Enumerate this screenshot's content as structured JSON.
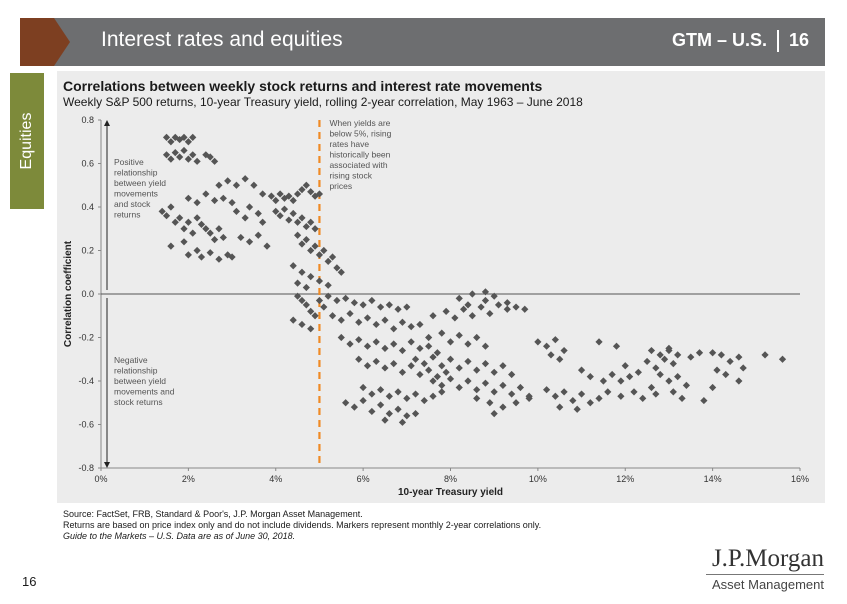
{
  "header": {
    "title": "Interest rates and equities",
    "gtm_label": "GTM – U.S.",
    "page": "16"
  },
  "side_tab": {
    "label": "Equities"
  },
  "colors": {
    "header_band": "#6d6e70",
    "header_accent": "#7d3f21",
    "side_tab": "#7d8a3a",
    "marker": "#555555",
    "threshold_line": "#f08a24",
    "panel": "#ececec"
  },
  "chart_data": {
    "type": "scatter",
    "title": "Correlations between weekly stock returns and interest rate movements",
    "subtitle": "Weekly S&P 500 returns, 10-year Treasury yield, rolling 2-year correlation, May 1963 – June 2018",
    "xlabel": "10-year Treasury yield",
    "ylabel": "Correlation coefficient",
    "xlim": [
      0,
      16
    ],
    "ylim": [
      -0.8,
      0.8
    ],
    "x_ticks": [
      0,
      2,
      4,
      6,
      8,
      10,
      12,
      14,
      16
    ],
    "x_tick_labels": [
      "0%",
      "2%",
      "4%",
      "6%",
      "8%",
      "10%",
      "12%",
      "14%",
      "16%"
    ],
    "y_ticks": [
      0.8,
      0.6,
      0.4,
      0.2,
      0.0,
      -0.2,
      -0.4,
      -0.6,
      -0.8
    ],
    "y_tick_labels": [
      "0.8",
      "0.6",
      "0.4",
      "0.2",
      "0.0",
      "-0.2",
      "-0.4",
      "-0.6",
      "-0.8"
    ],
    "threshold_x": 5,
    "annotations": {
      "positive": [
        "Positive",
        "relationship",
        "between yield",
        "movements",
        "and stock",
        "returns"
      ],
      "negative": [
        "Negative",
        "relationship",
        "between yield",
        "movements and",
        "stock returns"
      ],
      "threshold": [
        "When yields are",
        "below 5%, rising",
        "rates have",
        "historically been",
        "associated with",
        "rising stock",
        "prices"
      ]
    },
    "points": [
      [
        1.5,
        0.72
      ],
      [
        1.6,
        0.7
      ],
      [
        1.7,
        0.72
      ],
      [
        1.8,
        0.71
      ],
      [
        1.9,
        0.72
      ],
      [
        2.0,
        0.7
      ],
      [
        2.1,
        0.72
      ],
      [
        1.5,
        0.64
      ],
      [
        1.6,
        0.62
      ],
      [
        1.7,
        0.65
      ],
      [
        1.8,
        0.63
      ],
      [
        1.9,
        0.66
      ],
      [
        2.0,
        0.62
      ],
      [
        2.1,
        0.64
      ],
      [
        2.2,
        0.61
      ],
      [
        2.4,
        0.64
      ],
      [
        2.5,
        0.63
      ],
      [
        2.6,
        0.61
      ],
      [
        1.4,
        0.38
      ],
      [
        1.5,
        0.36
      ],
      [
        1.6,
        0.4
      ],
      [
        1.7,
        0.33
      ],
      [
        1.8,
        0.35
      ],
      [
        1.9,
        0.3
      ],
      [
        2.0,
        0.33
      ],
      [
        2.1,
        0.28
      ],
      [
        2.2,
        0.35
      ],
      [
        2.3,
        0.32
      ],
      [
        2.4,
        0.3
      ],
      [
        2.5,
        0.28
      ],
      [
        2.6,
        0.25
      ],
      [
        2.7,
        0.3
      ],
      [
        2.8,
        0.26
      ],
      [
        1.6,
        0.22
      ],
      [
        1.9,
        0.24
      ],
      [
        2.0,
        0.18
      ],
      [
        2.2,
        0.2
      ],
      [
        2.3,
        0.17
      ],
      [
        2.5,
        0.19
      ],
      [
        2.7,
        0.16
      ],
      [
        2.9,
        0.18
      ],
      [
        3.0,
        0.17
      ],
      [
        2.0,
        0.44
      ],
      [
        2.2,
        0.42
      ],
      [
        2.4,
        0.46
      ],
      [
        2.6,
        0.43
      ],
      [
        2.8,
        0.44
      ],
      [
        3.0,
        0.42
      ],
      [
        2.7,
        0.5
      ],
      [
        2.9,
        0.52
      ],
      [
        3.1,
        0.5
      ],
      [
        3.3,
        0.53
      ],
      [
        3.5,
        0.5
      ],
      [
        3.1,
        0.38
      ],
      [
        3.3,
        0.35
      ],
      [
        3.4,
        0.4
      ],
      [
        3.6,
        0.37
      ],
      [
        3.7,
        0.33
      ],
      [
        3.2,
        0.26
      ],
      [
        3.4,
        0.24
      ],
      [
        3.6,
        0.27
      ],
      [
        3.8,
        0.22
      ],
      [
        3.7,
        0.46
      ],
      [
        3.9,
        0.45
      ],
      [
        4.0,
        0.43
      ],
      [
        4.1,
        0.46
      ],
      [
        4.2,
        0.44
      ],
      [
        4.3,
        0.45
      ],
      [
        4.4,
        0.43
      ],
      [
        4.5,
        0.46
      ],
      [
        4.6,
        0.48
      ],
      [
        4.7,
        0.5
      ],
      [
        4.8,
        0.47
      ],
      [
        4.9,
        0.45
      ],
      [
        5.0,
        0.46
      ],
      [
        4.0,
        0.38
      ],
      [
        4.1,
        0.36
      ],
      [
        4.2,
        0.39
      ],
      [
        4.3,
        0.34
      ],
      [
        4.4,
        0.37
      ],
      [
        4.5,
        0.33
      ],
      [
        4.6,
        0.35
      ],
      [
        4.7,
        0.31
      ],
      [
        4.8,
        0.33
      ],
      [
        4.9,
        0.3
      ],
      [
        4.5,
        0.27
      ],
      [
        4.6,
        0.23
      ],
      [
        4.7,
        0.25
      ],
      [
        4.8,
        0.2
      ],
      [
        4.9,
        0.22
      ],
      [
        5.0,
        0.18
      ],
      [
        5.1,
        0.2
      ],
      [
        5.2,
        0.15
      ],
      [
        5.3,
        0.17
      ],
      [
        5.4,
        0.12
      ],
      [
        5.5,
        0.1
      ],
      [
        4.4,
        0.13
      ],
      [
        4.6,
        0.1
      ],
      [
        4.8,
        0.08
      ],
      [
        5.0,
        0.06
      ],
      [
        5.2,
        0.04
      ],
      [
        4.5,
        0.05
      ],
      [
        4.7,
        0.03
      ],
      [
        4.5,
        -0.01
      ],
      [
        4.6,
        -0.03
      ],
      [
        4.7,
        -0.05
      ],
      [
        4.8,
        -0.08
      ],
      [
        4.9,
        -0.1
      ],
      [
        4.4,
        -0.12
      ],
      [
        4.6,
        -0.14
      ],
      [
        4.8,
        -0.16
      ],
      [
        5.0,
        -0.03
      ],
      [
        5.1,
        -0.06
      ],
      [
        5.2,
        -0.01
      ],
      [
        5.4,
        -0.03
      ],
      [
        5.6,
        -0.02
      ],
      [
        5.8,
        -0.04
      ],
      [
        6.0,
        -0.05
      ],
      [
        6.2,
        -0.03
      ],
      [
        6.4,
        -0.06
      ],
      [
        6.6,
        -0.05
      ],
      [
        6.8,
        -0.07
      ],
      [
        7.0,
        -0.06
      ],
      [
        5.3,
        -0.1
      ],
      [
        5.5,
        -0.12
      ],
      [
        5.7,
        -0.09
      ],
      [
        5.9,
        -0.13
      ],
      [
        6.1,
        -0.11
      ],
      [
        6.3,
        -0.14
      ],
      [
        6.5,
        -0.12
      ],
      [
        6.7,
        -0.16
      ],
      [
        6.9,
        -0.13
      ],
      [
        7.1,
        -0.15
      ],
      [
        7.3,
        -0.14
      ],
      [
        5.5,
        -0.2
      ],
      [
        5.7,
        -0.23
      ],
      [
        5.9,
        -0.21
      ],
      [
        6.1,
        -0.24
      ],
      [
        6.3,
        -0.22
      ],
      [
        6.5,
        -0.25
      ],
      [
        6.7,
        -0.23
      ],
      [
        6.9,
        -0.26
      ],
      [
        7.1,
        -0.22
      ],
      [
        7.3,
        -0.25
      ],
      [
        7.5,
        -0.24
      ],
      [
        7.7,
        -0.27
      ],
      [
        5.9,
        -0.3
      ],
      [
        6.1,
        -0.33
      ],
      [
        6.3,
        -0.31
      ],
      [
        6.5,
        -0.34
      ],
      [
        6.7,
        -0.32
      ],
      [
        6.9,
        -0.36
      ],
      [
        7.1,
        -0.33
      ],
      [
        7.3,
        -0.37
      ],
      [
        7.5,
        -0.35
      ],
      [
        7.7,
        -0.38
      ],
      [
        7.9,
        -0.36
      ],
      [
        6.0,
        -0.43
      ],
      [
        6.2,
        -0.46
      ],
      [
        6.4,
        -0.44
      ],
      [
        6.6,
        -0.47
      ],
      [
        6.8,
        -0.45
      ],
      [
        7.0,
        -0.48
      ],
      [
        7.2,
        -0.46
      ],
      [
        7.4,
        -0.49
      ],
      [
        7.6,
        -0.47
      ],
      [
        7.8,
        -0.45
      ],
      [
        5.6,
        -0.5
      ],
      [
        5.8,
        -0.52
      ],
      [
        6.0,
        -0.49
      ],
      [
        6.2,
        -0.54
      ],
      [
        6.4,
        -0.51
      ],
      [
        6.6,
        -0.55
      ],
      [
        6.8,
        -0.53
      ],
      [
        7.0,
        -0.56
      ],
      [
        6.5,
        -0.58
      ],
      [
        6.9,
        -0.59
      ],
      [
        7.2,
        -0.55
      ],
      [
        7.2,
        -0.3
      ],
      [
        7.4,
        -0.32
      ],
      [
        7.6,
        -0.29
      ],
      [
        7.8,
        -0.33
      ],
      [
        8.0,
        -0.3
      ],
      [
        8.2,
        -0.34
      ],
      [
        8.4,
        -0.31
      ],
      [
        8.6,
        -0.35
      ],
      [
        8.8,
        -0.32
      ],
      [
        9.0,
        -0.36
      ],
      [
        9.2,
        -0.33
      ],
      [
        9.4,
        -0.37
      ],
      [
        7.6,
        -0.4
      ],
      [
        7.8,
        -0.42
      ],
      [
        8.0,
        -0.39
      ],
      [
        8.2,
        -0.43
      ],
      [
        8.4,
        -0.4
      ],
      [
        8.6,
        -0.44
      ],
      [
        8.8,
        -0.41
      ],
      [
        9.0,
        -0.45
      ],
      [
        9.2,
        -0.42
      ],
      [
        9.4,
        -0.46
      ],
      [
        9.6,
        -0.43
      ],
      [
        9.8,
        -0.47
      ],
      [
        7.5,
        -0.2
      ],
      [
        7.8,
        -0.18
      ],
      [
        8.0,
        -0.22
      ],
      [
        8.2,
        -0.19
      ],
      [
        8.4,
        -0.23
      ],
      [
        8.6,
        -0.2
      ],
      [
        8.8,
        -0.24
      ],
      [
        7.6,
        -0.1
      ],
      [
        7.9,
        -0.08
      ],
      [
        8.1,
        -0.11
      ],
      [
        8.3,
        -0.07
      ],
      [
        8.5,
        -0.1
      ],
      [
        8.7,
        -0.06
      ],
      [
        8.9,
        -0.09
      ],
      [
        9.1,
        -0.05
      ],
      [
        9.3,
        -0.07
      ],
      [
        9.5,
        -0.06
      ],
      [
        9.7,
        -0.07
      ],
      [
        8.2,
        -0.02
      ],
      [
        8.5,
        0.0
      ],
      [
        8.8,
        -0.03
      ],
      [
        9.0,
        -0.01
      ],
      [
        9.3,
        -0.04
      ],
      [
        8.4,
        -0.05
      ],
      [
        8.8,
        0.01
      ],
      [
        8.6,
        -0.48
      ],
      [
        8.9,
        -0.5
      ],
      [
        9.2,
        -0.52
      ],
      [
        9.5,
        -0.5
      ],
      [
        9.8,
        -0.48
      ],
      [
        9.0,
        -0.55
      ],
      [
        10.0,
        -0.22
      ],
      [
        10.2,
        -0.24
      ],
      [
        10.4,
        -0.21
      ],
      [
        10.3,
        -0.28
      ],
      [
        10.5,
        -0.3
      ],
      [
        10.6,
        -0.26
      ],
      [
        10.2,
        -0.44
      ],
      [
        10.4,
        -0.47
      ],
      [
        10.6,
        -0.45
      ],
      [
        10.8,
        -0.49
      ],
      [
        11.0,
        -0.46
      ],
      [
        10.5,
        -0.52
      ],
      [
        10.9,
        -0.53
      ],
      [
        11.2,
        -0.5
      ],
      [
        11.4,
        -0.48
      ],
      [
        11.0,
        -0.35
      ],
      [
        11.2,
        -0.38
      ],
      [
        11.5,
        -0.4
      ],
      [
        11.7,
        -0.37
      ],
      [
        11.9,
        -0.4
      ],
      [
        12.1,
        -0.38
      ],
      [
        11.6,
        -0.45
      ],
      [
        11.9,
        -0.47
      ],
      [
        12.2,
        -0.45
      ],
      [
        12.4,
        -0.48
      ],
      [
        12.7,
        -0.46
      ],
      [
        11.4,
        -0.22
      ],
      [
        11.8,
        -0.24
      ],
      [
        12.0,
        -0.33
      ],
      [
        12.3,
        -0.36
      ],
      [
        12.5,
        -0.31
      ],
      [
        12.7,
        -0.34
      ],
      [
        12.9,
        -0.3
      ],
      [
        13.1,
        -0.32
      ],
      [
        13.0,
        -0.26
      ],
      [
        13.2,
        -0.28
      ],
      [
        12.8,
        -0.37
      ],
      [
        13.0,
        -0.4
      ],
      [
        13.2,
        -0.38
      ],
      [
        13.4,
        -0.42
      ],
      [
        12.6,
        -0.43
      ],
      [
        13.1,
        -0.45
      ],
      [
        13.3,
        -0.48
      ],
      [
        12.6,
        -0.26
      ],
      [
        12.8,
        -0.28
      ],
      [
        13.0,
        -0.25
      ],
      [
        13.5,
        -0.29
      ],
      [
        13.7,
        -0.27
      ],
      [
        14.0,
        -0.27
      ],
      [
        14.2,
        -0.28
      ],
      [
        14.4,
        -0.31
      ],
      [
        14.1,
        -0.35
      ],
      [
        14.3,
        -0.37
      ],
      [
        14.0,
        -0.43
      ],
      [
        13.8,
        -0.49
      ],
      [
        14.6,
        -0.29
      ],
      [
        14.7,
        -0.34
      ],
      [
        14.6,
        -0.4
      ],
      [
        15.2,
        -0.28
      ],
      [
        15.6,
        -0.3
      ]
    ]
  },
  "footnotes": [
    "Source: FactSet, FRB, Standard & Poor's, J.P. Morgan Asset Management.",
    "Returns are based on price index only and do not include dividends. Markers represent monthly 2-year correlations only.",
    "Guide to the Markets – U.S. Data are as of June 30, 2018."
  ],
  "logo": {
    "main": "J.P.Morgan",
    "sub": "Asset Management"
  },
  "page_number": "16"
}
